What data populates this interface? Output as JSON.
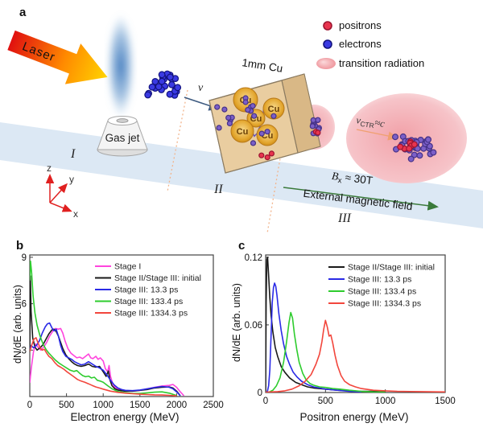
{
  "panel_a": {
    "label": "a",
    "laser_label": "Laser",
    "gas_jet_label": "Gas jet",
    "cube_label": "1mm Cu",
    "velocity_label": "v",
    "vctr": {
      "v": "v",
      "sub": "CTR",
      "rest": "≈c"
    },
    "bfield": {
      "b": "B",
      "sub": "x",
      "rest": " ≈ 30T"
    },
    "bfield_caption": "External magnetic field",
    "stages": {
      "one": "I",
      "two": "II",
      "three": "III"
    },
    "axes": {
      "x": "x",
      "y": "y",
      "z": "z"
    },
    "legend": [
      {
        "marker": "positron-dot",
        "label": "positrons",
        "color": "#e8344e"
      },
      {
        "marker": "electron-dot",
        "label": "electrons",
        "color": "#3a3ae2"
      },
      {
        "marker": "radiation-ellipse",
        "label": "transition radiation",
        "color": "#f2a5ab"
      }
    ]
  },
  "chart_data": [
    {
      "type": "line",
      "panel_label": "b",
      "xlabel": "Electron energy (MeV)",
      "ylabel": "dN/dE (arb. units)",
      "xlim": [
        0,
        2500
      ],
      "ylim": [
        0,
        9.15
      ],
      "xticks": [
        0,
        500,
        1000,
        1500,
        2000,
        2500
      ],
      "xtick_labels": [
        "0",
        "500",
        "1000",
        "1500",
        "2000",
        "2500"
      ],
      "yticks": [
        3,
        6,
        9
      ],
      "ytick_labels": [
        "3",
        "6",
        "9"
      ],
      "grid": false,
      "legend_position": "top-right-inside",
      "series": [
        {
          "name": "Stage I",
          "color": "#ff44dd",
          "x": [
            0,
            20,
            50,
            80,
            110,
            150,
            190,
            230,
            270,
            310,
            350,
            390,
            420,
            450,
            480,
            520,
            560,
            600,
            640,
            680,
            720,
            760,
            800,
            830,
            860,
            900,
            930,
            960,
            1000,
            1030,
            1060,
            1080,
            1100,
            1130,
            1160,
            1200,
            1250,
            1300,
            1400,
            1500,
            1600,
            1700,
            1800,
            1900,
            1950,
            2000,
            2050,
            2100
          ],
          "y": [
            0.9,
            1.8,
            2.9,
            3.4,
            3.2,
            3.0,
            3.2,
            3.5,
            3.9,
            4.2,
            4.4,
            4.35,
            4.4,
            4.1,
            3.6,
            3.1,
            2.8,
            2.65,
            2.5,
            2.55,
            2.45,
            2.6,
            2.75,
            2.5,
            2.45,
            2.6,
            2.4,
            2.5,
            2.3,
            1.8,
            1.6,
            2.0,
            1.3,
            0.8,
            0.6,
            0.5,
            0.4,
            0.38,
            0.35,
            0.4,
            0.5,
            0.6,
            0.68,
            0.72,
            0.78,
            0.6,
            0.3,
            0.05
          ]
        },
        {
          "name": "Stage II/Stage III: initial",
          "color": "#1a1a1a",
          "x": [
            0,
            8,
            18,
            40,
            70,
            100,
            140,
            180,
            220,
            260,
            300,
            330,
            360,
            390,
            420,
            450,
            490,
            530,
            570,
            610,
            650,
            700,
            750,
            800,
            850,
            900,
            950,
            1000,
            1040,
            1070,
            1090,
            1120,
            1160,
            1200,
            1250,
            1300,
            1400,
            1500,
            1600,
            1700,
            1800,
            1900,
            1950,
            2000,
            2050
          ],
          "y": [
            3.1,
            7.8,
            5.5,
            3.8,
            3.2,
            3.0,
            3.15,
            3.35,
            3.7,
            4.05,
            4.3,
            4.35,
            4.2,
            3.9,
            3.5,
            3.1,
            2.7,
            2.45,
            2.25,
            2.1,
            2.0,
            1.95,
            2.0,
            2.1,
            1.95,
            1.9,
            1.95,
            1.6,
            1.3,
            1.65,
            1.1,
            0.7,
            0.5,
            0.42,
            0.38,
            0.35,
            0.35,
            0.4,
            0.45,
            0.55,
            0.6,
            0.62,
            0.55,
            0.35,
            0.05
          ]
        },
        {
          "name": "Stage III: 13.3 ps",
          "color": "#2a2ae6",
          "x": [
            0,
            20,
            50,
            90,
            130,
            170,
            210,
            240,
            270,
            300,
            330,
            360,
            390,
            420,
            450,
            490,
            530,
            570,
            610,
            650,
            700,
            750,
            800,
            850,
            900,
            950,
            1000,
            1050,
            1100,
            1150,
            1200,
            1250,
            1300,
            1400,
            1500,
            1600,
            1700,
            1800,
            1900,
            1950,
            2000,
            2050
          ],
          "y": [
            3.0,
            3.3,
            3.15,
            3.3,
            3.6,
            4.1,
            4.5,
            4.7,
            4.75,
            4.45,
            4.25,
            4.35,
            3.9,
            3.3,
            2.9,
            2.6,
            2.5,
            2.4,
            2.25,
            2.15,
            2.05,
            2.1,
            2.25,
            2.1,
            1.95,
            1.85,
            1.7,
            1.4,
            1.05,
            0.75,
            0.55,
            0.45,
            0.4,
            0.38,
            0.42,
            0.5,
            0.58,
            0.65,
            0.6,
            0.5,
            0.3,
            0.05
          ]
        },
        {
          "name": "Stage III: 133.4 ps",
          "color": "#2ecc2e",
          "x": [
            0,
            10,
            25,
            45,
            70,
            100,
            140,
            180,
            220,
            260,
            300,
            350,
            400,
            450,
            500,
            550,
            600,
            640,
            680,
            720,
            760,
            800,
            840,
            880,
            920,
            960,
            1000,
            1060,
            1120,
            1200,
            1300,
            1400,
            1500,
            1600,
            1700,
            1800,
            1900,
            2000
          ],
          "y": [
            7.5,
            8.75,
            8.0,
            6.5,
            5.4,
            4.6,
            3.9,
            3.4,
            3.05,
            2.8,
            2.6,
            2.35,
            2.15,
            2.0,
            1.85,
            1.7,
            1.62,
            1.68,
            1.5,
            1.35,
            1.28,
            1.32,
            1.2,
            1.25,
            1.05,
            1.0,
            0.92,
            0.7,
            0.5,
            0.32,
            0.25,
            0.2,
            0.2,
            0.24,
            0.28,
            0.3,
            0.22,
            0.06
          ]
        },
        {
          "name": "Stage III: 1334.3 ps",
          "color": "#f2463c",
          "x": [
            0,
            25,
            55,
            85,
            110,
            140,
            170,
            200,
            230,
            260,
            300,
            340,
            380,
            420,
            460,
            500,
            550,
            600,
            650,
            700,
            750,
            800,
            850,
            900,
            950,
            1000,
            1100,
            1200,
            1300,
            1400,
            1500,
            1600,
            1700,
            1800,
            1900,
            2000
          ],
          "y": [
            2.9,
            3.3,
            3.7,
            3.8,
            3.5,
            3.15,
            3.0,
            3.05,
            2.8,
            2.6,
            2.45,
            2.2,
            2.0,
            1.9,
            1.78,
            1.62,
            1.45,
            1.28,
            1.1,
            1.0,
            0.92,
            0.82,
            0.72,
            0.62,
            0.55,
            0.48,
            0.35,
            0.27,
            0.22,
            0.18,
            0.15,
            0.13,
            0.11,
            0.1,
            0.08,
            0.04
          ]
        }
      ]
    },
    {
      "type": "line",
      "panel_label": "c",
      "xlabel": "Positron energy (MeV)",
      "ylabel": "dN/dE (arb. units)",
      "xlim": [
        0,
        1500
      ],
      "ylim": [
        0,
        0.122
      ],
      "xticks": [
        0,
        500,
        1000,
        1500
      ],
      "xtick_labels": [
        "0",
        "500",
        "1000",
        "1500"
      ],
      "yticks": [
        0,
        0.06,
        0.12
      ],
      "ytick_labels": [
        "0",
        "0.06",
        "0.12"
      ],
      "grid": false,
      "legend_position": "top-right-inside",
      "series": [
        {
          "name": "Stage II/Stage III: initial",
          "color": "#1a1a1a",
          "x": [
            0,
            4,
            10,
            16,
            24,
            34,
            46,
            60,
            80,
            100,
            130,
            160,
            200,
            250,
            300,
            350,
            400,
            500,
            600,
            700,
            800,
            900,
            1000
          ],
          "y": [
            0,
            0.08,
            0.118,
            0.12,
            0.105,
            0.085,
            0.068,
            0.054,
            0.04,
            0.032,
            0.023,
            0.018,
            0.013,
            0.009,
            0.007,
            0.005,
            0.004,
            0.003,
            0.002,
            0.0015,
            0.001,
            0.001,
            0.0005
          ]
        },
        {
          "name": "Stage III: 13.3 ps",
          "color": "#2a2ae6",
          "x": [
            0,
            15,
            25,
            35,
            45,
            55,
            65,
            75,
            85,
            95,
            110,
            130,
            150,
            175,
            200,
            230,
            260,
            300,
            350,
            400,
            450,
            500,
            600,
            700,
            800
          ],
          "y": [
            0,
            0.001,
            0.006,
            0.02,
            0.05,
            0.08,
            0.093,
            0.097,
            0.094,
            0.086,
            0.07,
            0.055,
            0.043,
            0.032,
            0.025,
            0.018,
            0.014,
            0.01,
            0.007,
            0.005,
            0.004,
            0.003,
            0.002,
            0.001,
            0.0005
          ]
        },
        {
          "name": "Stage III: 133.4 ps",
          "color": "#2ecc2e",
          "x": [
            0,
            30,
            60,
            90,
            120,
            150,
            175,
            195,
            210,
            225,
            240,
            260,
            280,
            310,
            340,
            370,
            400,
            450,
            500,
            560,
            620,
            700,
            800,
            900,
            1000
          ],
          "y": [
            0,
            0.0005,
            0.002,
            0.006,
            0.013,
            0.027,
            0.045,
            0.062,
            0.071,
            0.066,
            0.052,
            0.038,
            0.027,
            0.017,
            0.011,
            0.008,
            0.0065,
            0.005,
            0.0045,
            0.0035,
            0.003,
            0.002,
            0.001,
            0.0005,
            0.0003
          ]
        },
        {
          "name": "Stage III: 1334.3 ps",
          "color": "#f2463c",
          "x": [
            0,
            100,
            160,
            220,
            280,
            330,
            380,
            420,
            450,
            470,
            485,
            500,
            515,
            530,
            545,
            560,
            580,
            600,
            630,
            660,
            700,
            750,
            800,
            900,
            1000,
            1100,
            1300,
            1500
          ],
          "y": [
            0.0003,
            0.0008,
            0.0015,
            0.003,
            0.006,
            0.01,
            0.016,
            0.025,
            0.034,
            0.045,
            0.056,
            0.064,
            0.058,
            0.05,
            0.051,
            0.044,
            0.033,
            0.024,
            0.015,
            0.01,
            0.007,
            0.005,
            0.0035,
            0.002,
            0.0015,
            0.001,
            0.0008,
            0.0005
          ]
        }
      ]
    }
  ]
}
